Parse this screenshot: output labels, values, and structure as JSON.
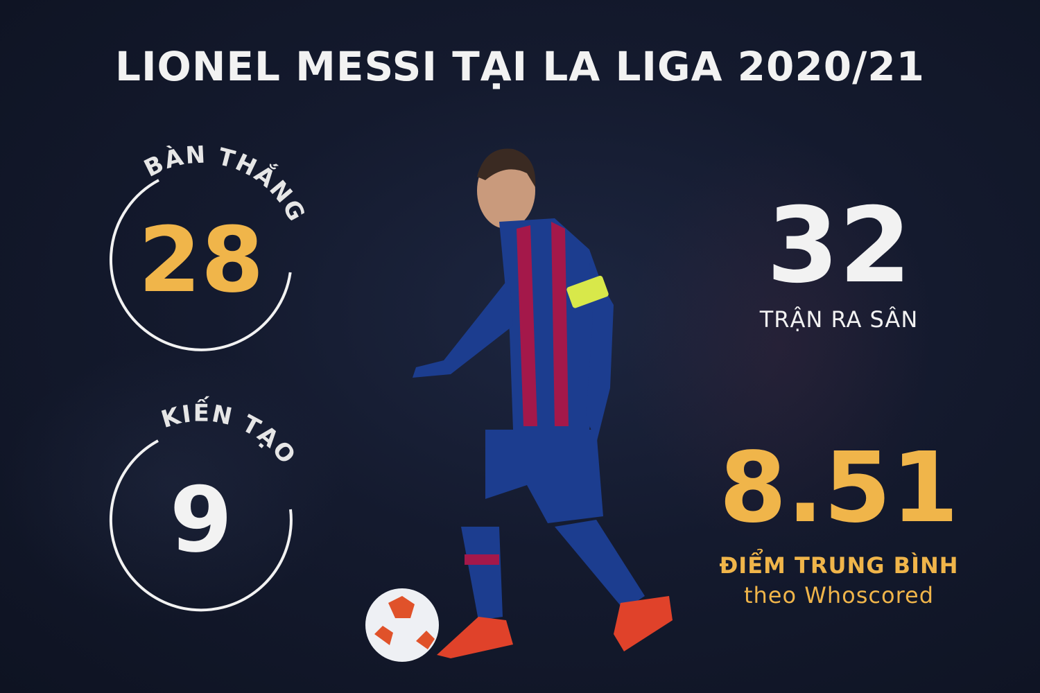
{
  "title": "LIONEL MESSI TẠI LA LIGA 2020/21",
  "colors": {
    "accent": "#f0b54a",
    "text": "#f2f2f2",
    "background": "#141a2e"
  },
  "goals": {
    "label": "BÀN THẮNG",
    "value": "28"
  },
  "assists": {
    "label": "KIẾN TẠO",
    "value": "9"
  },
  "appearances": {
    "value": "32",
    "label": "TRẬN RA SÂN"
  },
  "rating": {
    "value": "8.51",
    "label": "ĐIỂM TRUNG BÌNH",
    "source": "theo Whoscored"
  },
  "image": {
    "subject": "player-photo"
  }
}
